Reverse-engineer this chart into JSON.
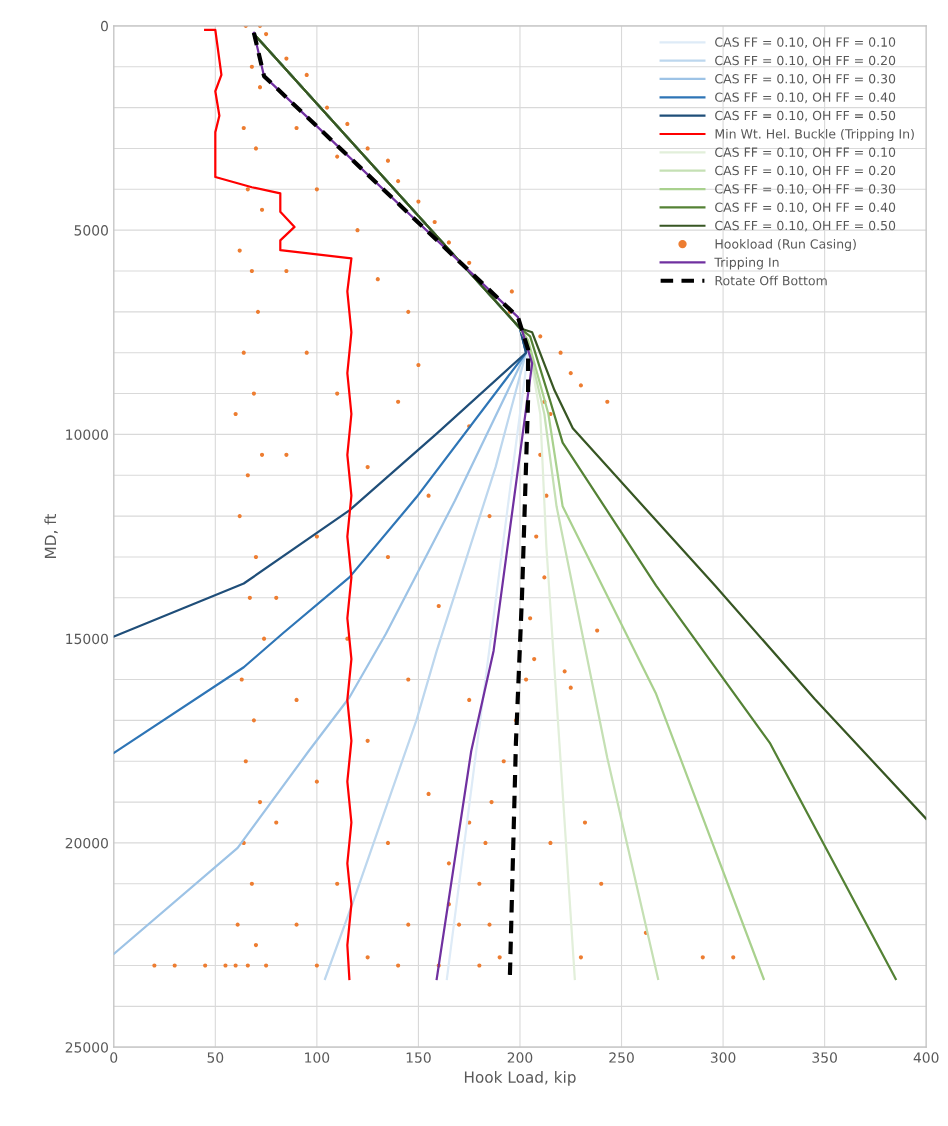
{
  "chart_data": {
    "type": "line",
    "xlabel": "Hook Load, kip",
    "ylabel": "MD, ft",
    "xlim": [
      0,
      400
    ],
    "xticks": [
      0,
      50,
      100,
      150,
      200,
      250,
      300,
      350,
      400
    ],
    "ylim": [
      25000,
      0
    ],
    "yticks": [
      0,
      {
        "value": 1000,
        "label": null
      },
      {
        "value": 2000,
        "label": null
      },
      {
        "value": 3000,
        "label": null
      },
      {
        "value": 4000,
        "label": null
      },
      5000,
      {
        "value": 6000,
        "label": null
      },
      {
        "value": 7000,
        "label": null
      },
      {
        "value": 8000,
        "label": null
      },
      {
        "value": 9000,
        "label": null
      },
      10000,
      {
        "value": 11000,
        "label": null
      },
      {
        "value": 12000,
        "label": null
      },
      {
        "value": 13000,
        "label": null
      },
      {
        "value": 14000,
        "label": null
      },
      15000,
      {
        "value": 16000,
        "label": null
      },
      {
        "value": 17000,
        "label": null
      },
      {
        "value": 18000,
        "label": null
      },
      {
        "value": 19000,
        "label": null
      },
      20000,
      {
        "value": 21000,
        "label": null
      },
      {
        "value": 22000,
        "label": null
      },
      {
        "value": 23000,
        "label": null
      },
      {
        "value": 24000,
        "label": null
      },
      25000
    ],
    "grid": true,
    "legend": "top right",
    "marker": "none",
    "series": [
      {
        "name": "CAS FF = 0.10, OH FF = 0.10",
        "color": "#deebf7",
        "x": [
          69,
          200,
          204,
          196,
          183,
          164
        ],
        "values": [
          200,
          7400,
          8000,
          11000,
          16000,
          23330
        ]
      },
      {
        "name": "CAS FF = 0.10, OH FF = 0.20",
        "color": "#bdd7ee",
        "x": [
          69,
          200,
          203,
          188,
          159,
          149,
          118,
          104
        ],
        "values": [
          200,
          7400,
          8000,
          10800,
          15300,
          17000,
          21420,
          23330
        ]
      },
      {
        "name": "CAS FF = 0.10, OH FF = 0.30",
        "color": "#9dc3e6",
        "x": [
          69,
          200,
          203,
          168,
          134,
          116,
          96,
          61,
          0
        ],
        "values": [
          200,
          7400,
          8000,
          11620,
          14880,
          16440,
          17750,
          20120,
          22720
        ]
      },
      {
        "name": "CAS FF = 0.10, OH FF = 0.40",
        "color": "#2e75b6",
        "x": [
          69,
          200,
          203,
          149,
          116,
          83,
          64,
          0
        ],
        "values": [
          200,
          7400,
          8000,
          11540,
          13500,
          14880,
          15700,
          17800
        ]
      },
      {
        "name": "CAS FF = 0.10, OH FF = 0.50",
        "color": "#1f4e79",
        "x": [
          69,
          200,
          203,
          159,
          116,
          64,
          0
        ],
        "values": [
          200,
          7400,
          8000,
          9980,
          11860,
          13650,
          14950
        ]
      },
      {
        "name": "Min Wt. Hel. Buckle (Tripping In)",
        "color": "#ff0000",
        "x": [
          45,
          50,
          53,
          50,
          52,
          50,
          50,
          68,
          82,
          82,
          89,
          82,
          82,
          117,
          115,
          117,
          115,
          117,
          115,
          117,
          115,
          117,
          115,
          117,
          115,
          117,
          115,
          117,
          115,
          117,
          115,
          116
        ],
        "values": [
          100,
          100,
          1200,
          1600,
          2200,
          2600,
          3700,
          3950,
          4100,
          4550,
          4920,
          5250,
          5490,
          5690,
          6500,
          7500,
          8500,
          9500,
          10500,
          11500,
          12500,
          13500,
          14500,
          15500,
          16500,
          17500,
          18500,
          19500,
          20500,
          21500,
          22500,
          23330
        ]
      },
      {
        "name": "CAS FF = 0.10, OH FF = 0.10",
        "color": "#e2efda",
        "x": [
          69,
          200,
          204,
          210,
          213,
          221,
          227
        ],
        "values": [
          200,
          7400,
          7800,
          9500,
          12750,
          18750,
          23330
        ]
      },
      {
        "name": "CAS FF = 0.10, OH FF = 0.20",
        "color": "#c5e0b4",
        "x": [
          69,
          200,
          204,
          212,
          218,
          243,
          268
        ],
        "values": [
          200,
          7400,
          7800,
          9500,
          11760,
          17920,
          23330
        ]
      },
      {
        "name": "CAS FF = 0.10, OH FF = 0.30",
        "color": "#a9d18e",
        "x": [
          69,
          200,
          204,
          214,
          221,
          267,
          320
        ],
        "values": [
          200,
          7400,
          7700,
          9500,
          11760,
          16350,
          23330
        ]
      },
      {
        "name": "CAS FF = 0.10, OH FF = 0.40",
        "color": "#548235",
        "x": [
          69,
          200,
          205,
          215,
          221,
          267,
          323,
          385
        ],
        "values": [
          200,
          7400,
          7600,
          9200,
          10200,
          13700,
          17550,
          23330
        ]
      },
      {
        "name": "CAS FF = 0.10, OH FF = 0.50",
        "color": "#375623",
        "x": [
          69,
          200,
          206,
          217,
          226,
          296,
          345,
          400
        ],
        "values": [
          200,
          7400,
          7500,
          8920,
          9850,
          13700,
          16470,
          19410
        ]
      },
      {
        "name": "Hookload (Run Casing)",
        "type": "scatter",
        "color": "#ed7d31",
        "x": [
          65,
          72,
          75,
          68,
          72,
          64,
          70,
          66,
          73,
          62,
          68,
          71,
          64,
          69,
          60,
          73,
          66,
          62,
          70,
          67,
          74,
          63,
          69,
          65,
          72,
          64,
          68,
          61,
          70,
          66,
          60,
          75,
          85,
          95,
          105,
          115,
          125,
          135,
          140,
          150,
          158,
          165,
          175,
          196,
          195,
          210,
          220,
          225,
          230,
          243,
          215,
          90,
          100,
          110,
          120,
          85,
          130,
          145,
          95,
          150,
          110,
          140,
          175,
          85,
          125,
          155,
          100,
          185,
          135,
          80,
          160,
          115,
          145,
          90,
          175,
          125,
          100,
          155,
          80,
          135,
          110,
          165,
          90,
          145,
          125,
          210,
          213,
          208,
          212,
          205,
          207,
          203,
          198,
          192,
          186,
          183,
          180,
          185,
          190,
          170,
          165,
          175,
          160,
          180,
          20,
          30,
          45,
          55,
          100,
          140,
          238,
          222,
          225,
          232,
          240,
          262,
          290,
          305,
          230,
          215,
          212
        ],
        "values": [
          0,
          0,
          200,
          1000,
          1500,
          2500,
          3000,
          4000,
          4500,
          5500,
          6000,
          7000,
          8000,
          9000,
          9500,
          10500,
          11000,
          12000,
          13000,
          14000,
          15000,
          16000,
          17000,
          18000,
          19000,
          20000,
          21000,
          22000,
          22500,
          23000,
          23000,
          23000,
          800,
          1200,
          2000,
          2400,
          3000,
          3300,
          3800,
          4300,
          4800,
          5300,
          5800,
          6500,
          7000,
          7600,
          8000,
          8500,
          8800,
          9200,
          9500,
          2500,
          4000,
          3200,
          5000,
          6000,
          6200,
          7000,
          8000,
          8300,
          9000,
          9200,
          9800,
          10500,
          10800,
          11500,
          12500,
          12000,
          13000,
          14000,
          14200,
          15000,
          16000,
          16500,
          16500,
          17500,
          18500,
          18800,
          19500,
          20000,
          21000,
          20500,
          22000,
          22000,
          22800,
          10500,
          11500,
          12500,
          13500,
          14500,
          15500,
          16000,
          17000,
          18000,
          19000,
          20000,
          21000,
          22000,
          22800,
          22000,
          21500,
          19500,
          23000,
          23000,
          23000,
          23000,
          23000,
          23000,
          23000,
          23000,
          14800,
          15800,
          16200,
          19500,
          21000,
          22200,
          22800,
          22800,
          22800,
          20000,
          9200
        ]
      },
      {
        "name": "Tripping In",
        "color": "#7030a0",
        "x": [
          69,
          74,
          199,
          206,
          187,
          176,
          159
        ],
        "values": [
          170,
          1230,
          7130,
          8260,
          15300,
          17750,
          23330
        ]
      },
      {
        "name": "Rotate Off Bottom",
        "color": "#000000",
        "line_style": "dashed",
        "x": [
          69,
          74,
          199,
          204,
          204,
          201,
          198,
          195
        ],
        "values": [
          170,
          1230,
          7130,
          7920,
          9120,
          13950,
          17550,
          23330
        ]
      }
    ]
  }
}
